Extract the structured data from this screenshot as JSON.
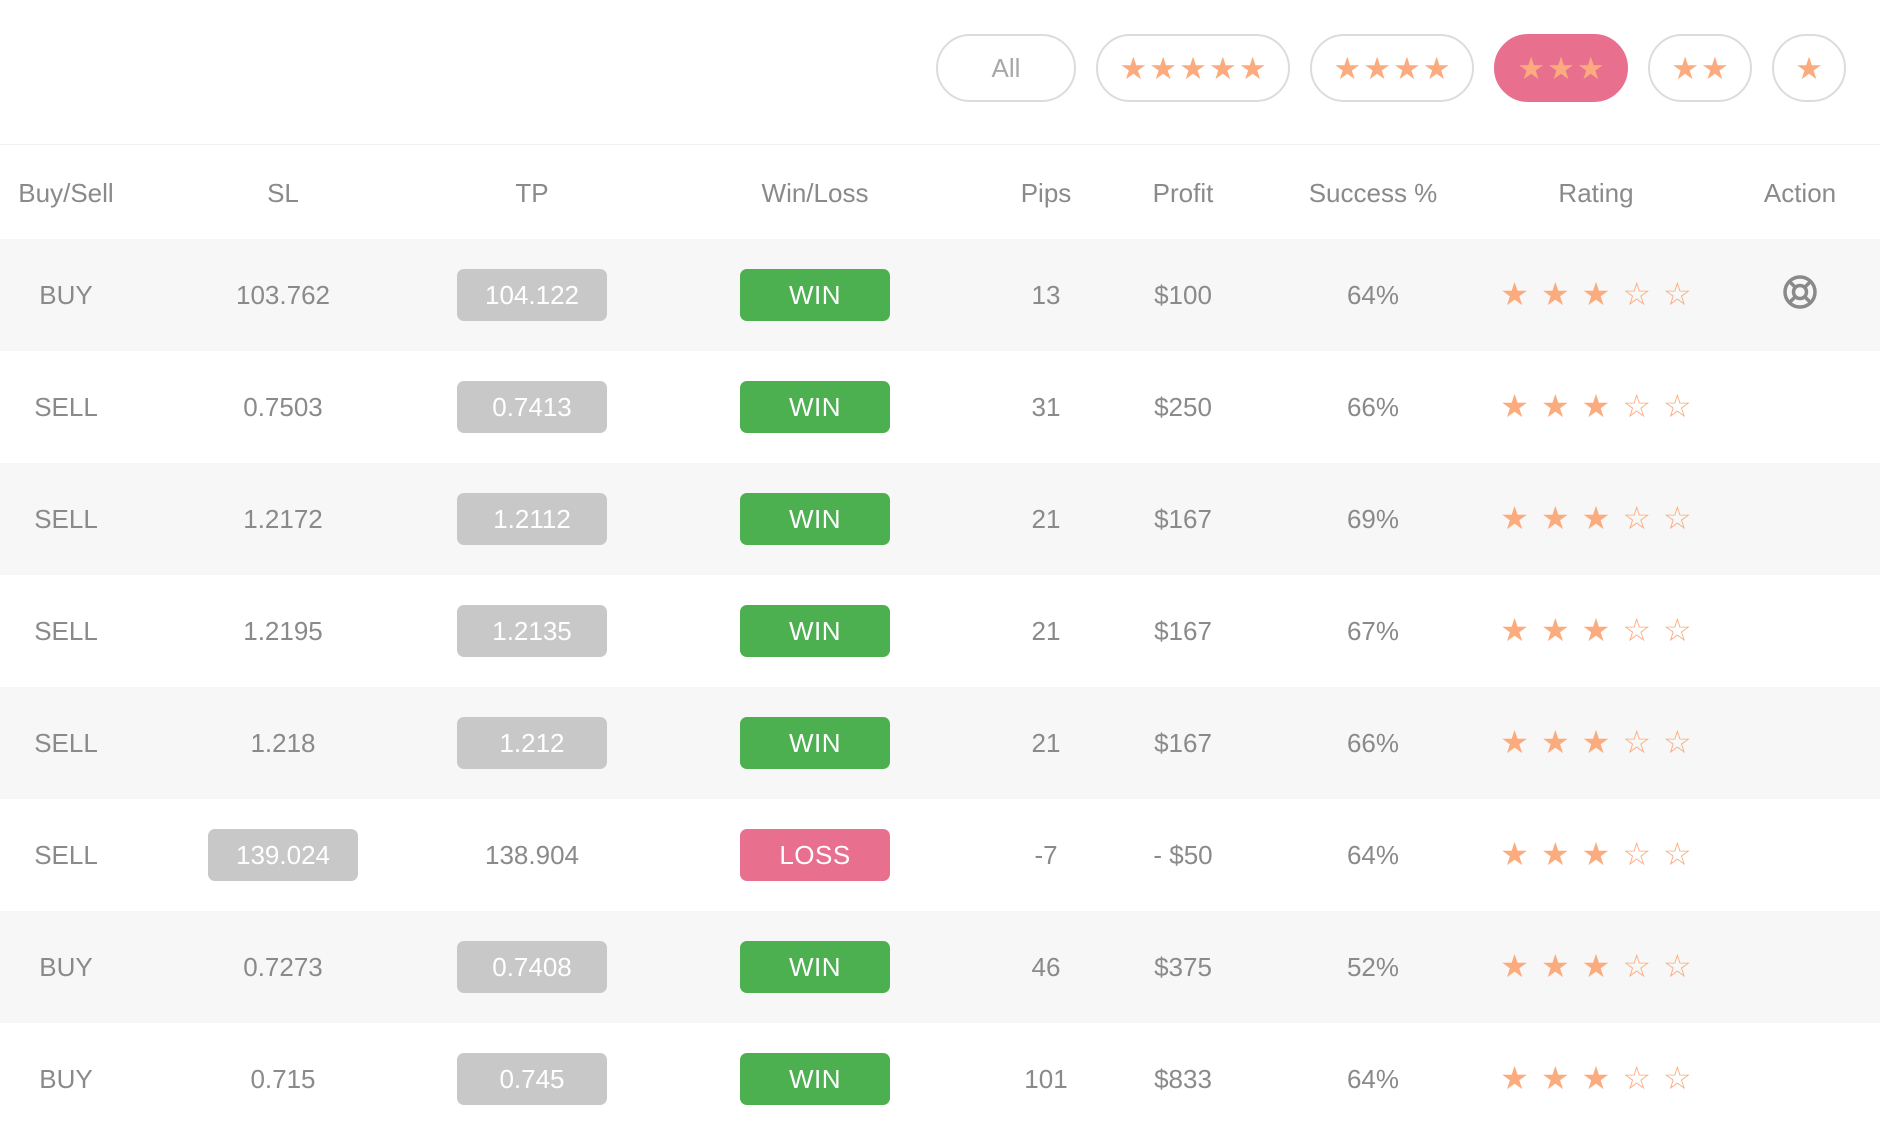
{
  "filters": {
    "all_label": "All",
    "options": [
      {
        "stars": 5,
        "active": false
      },
      {
        "stars": 4,
        "active": false
      },
      {
        "stars": 3,
        "active": true
      },
      {
        "stars": 2,
        "active": false
      },
      {
        "stars": 1,
        "active": false
      }
    ]
  },
  "colors": {
    "win": "#4caf50",
    "loss": "#e8708e",
    "star": "#fbab7e",
    "active_filter": "#e8708e",
    "chip_grey": "#c8c8c8"
  },
  "table": {
    "headers": [
      "Buy/Sell",
      "SL",
      "TP",
      "Win/Loss",
      "Pips",
      "Profit",
      "Success %",
      "Rating",
      "Action"
    ],
    "rows": [
      {
        "side": "BUY",
        "sl": "103.762",
        "tp": "104.122",
        "hit": "tp",
        "result": "WIN",
        "pips": "13",
        "profit": "$100",
        "success": "64%",
        "rating": 3,
        "action_icon": "lifebuoy-icon"
      },
      {
        "side": "SELL",
        "sl": "0.7503",
        "tp": "0.7413",
        "hit": "tp",
        "result": "WIN",
        "pips": "31",
        "profit": "$250",
        "success": "66%",
        "rating": 3,
        "action_icon": ""
      },
      {
        "side": "SELL",
        "sl": "1.2172",
        "tp": "1.2112",
        "hit": "tp",
        "result": "WIN",
        "pips": "21",
        "profit": "$167",
        "success": "69%",
        "rating": 3,
        "action_icon": ""
      },
      {
        "side": "SELL",
        "sl": "1.2195",
        "tp": "1.2135",
        "hit": "tp",
        "result": "WIN",
        "pips": "21",
        "profit": "$167",
        "success": "67%",
        "rating": 3,
        "action_icon": ""
      },
      {
        "side": "SELL",
        "sl": "1.218",
        "tp": "1.212",
        "hit": "tp",
        "result": "WIN",
        "pips": "21",
        "profit": "$167",
        "success": "66%",
        "rating": 3,
        "action_icon": ""
      },
      {
        "side": "SELL",
        "sl": "139.024",
        "tp": "138.904",
        "hit": "sl",
        "result": "LOSS",
        "pips": "-7",
        "profit": "- $50",
        "success": "64%",
        "rating": 3,
        "action_icon": ""
      },
      {
        "side": "BUY",
        "sl": "0.7273",
        "tp": "0.7408",
        "hit": "tp",
        "result": "WIN",
        "pips": "46",
        "profit": "$375",
        "success": "52%",
        "rating": 3,
        "action_icon": ""
      },
      {
        "side": "BUY",
        "sl": "0.715",
        "tp": "0.745",
        "hit": "tp",
        "result": "WIN",
        "pips": "101",
        "profit": "$833",
        "success": "64%",
        "rating": 3,
        "action_icon": ""
      }
    ]
  }
}
